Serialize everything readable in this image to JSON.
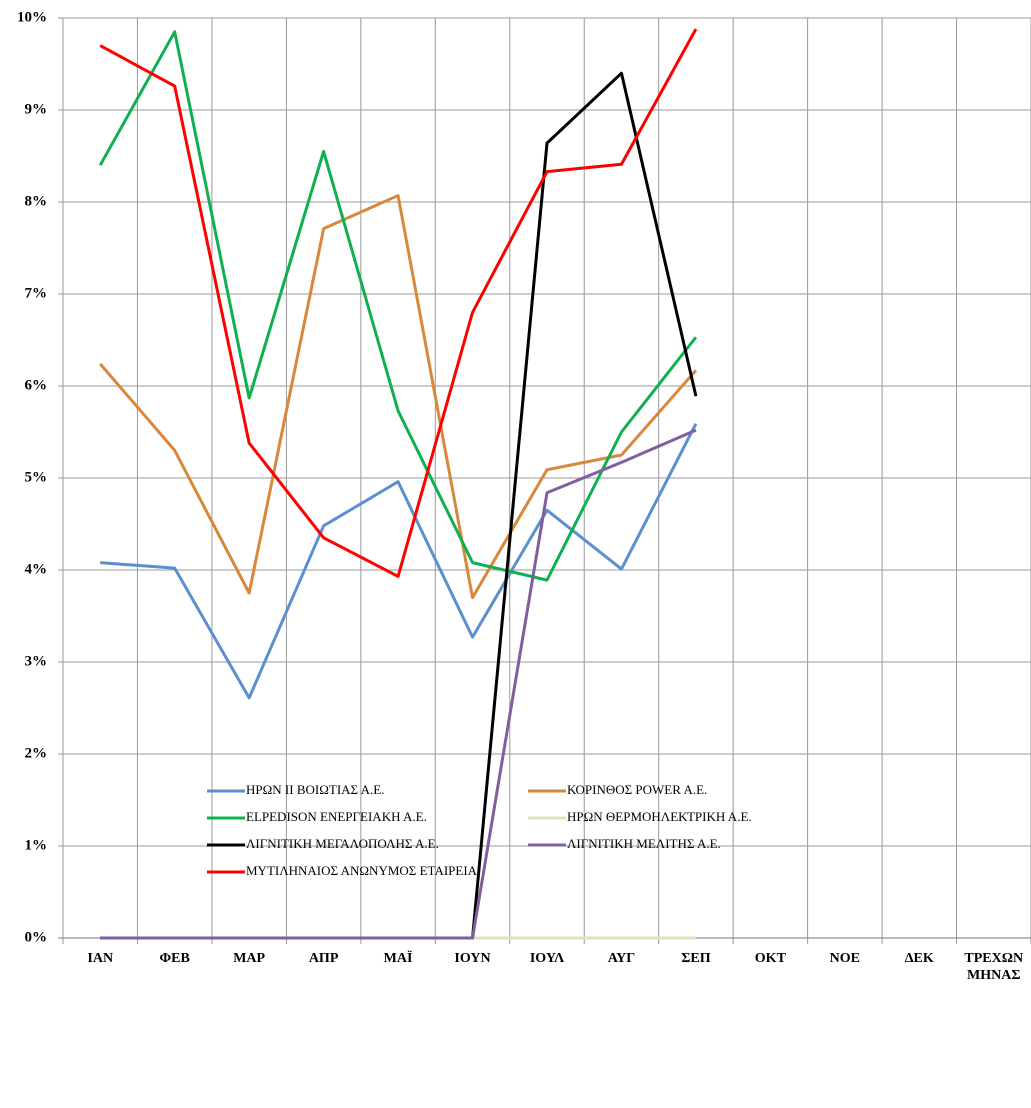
{
  "chart_data": {
    "type": "line",
    "categories": [
      "ΙΑΝ",
      "ΦΕΒ",
      "ΜΑΡ",
      "ΑΠΡ",
      "ΜΑΪ",
      "ΙΟΥΝ",
      "ΙΟΥΛ",
      "ΑΥΓ",
      "ΣΕΠ",
      "ΟΚΤ",
      "ΝΟΕ",
      "ΔΕΚ",
      "ΤΡΕΧΩΝ ΜΗΝΑΣ"
    ],
    "series": [
      {
        "name": "ΗΡΩΝ ΙΙ ΒΟΙΩΤΙΑΣ Α.Ε.",
        "color": "#5b8fd0",
        "values": [
          4.08,
          4.02,
          2.61,
          4.48,
          4.96,
          3.27,
          4.65,
          4.01,
          5.59,
          null,
          null,
          null,
          null
        ]
      },
      {
        "name": "ΚΟΡΙΝΘΟΣ POWER A.E.",
        "color": "#d9873a",
        "values": [
          6.24,
          5.3,
          3.75,
          7.71,
          8.07,
          3.7,
          5.09,
          5.25,
          6.17,
          null,
          null,
          null,
          null
        ]
      },
      {
        "name": "ELPEDISON ΕΝΕΡΓΕΙΑΚΗ Α.Ε.",
        "color": "#10b050",
        "values": [
          8.4,
          9.85,
          5.87,
          8.55,
          5.73,
          4.08,
          3.89,
          5.5,
          6.53,
          null,
          null,
          null,
          null
        ]
      },
      {
        "name": "ΗΡΩΝ ΘΕΡΜΟΗΛΕΚΤΡΙΚΗ Α.Ε.",
        "color": "#d7e4bd",
        "values": [
          0,
          0,
          0,
          0,
          0,
          0,
          0,
          0,
          0,
          null,
          null,
          null,
          null
        ]
      },
      {
        "name": "ΛΙΓΝΙΤΙΚΗ ΜΕΓΑΛΟΠΟΛΗΣ Α.Ε.",
        "color": "#000000",
        "values": [
          0,
          0,
          0,
          0,
          0,
          0,
          8.64,
          9.4,
          5.89,
          null,
          null,
          null,
          null
        ]
      },
      {
        "name": "ΛΙΓΝΙΤΙΚΗ ΜΕΛΙΤΗΣ Α.Ε.",
        "color": "#7f5f9f",
        "values": [
          0,
          0,
          0,
          0,
          0,
          0,
          4.84,
          5.17,
          5.52,
          null,
          null,
          null,
          null
        ]
      },
      {
        "name": "ΜΥΤΙΛΗΝΑΙΟΣ ΑΝΩΝΥΜΟΣ ΕΤΑΙΡΕΙΑ",
        "color": "#ff0000",
        "values": [
          9.7,
          9.26,
          5.38,
          4.35,
          3.93,
          6.8,
          8.33,
          8.41,
          9.88,
          null,
          null,
          null,
          null
        ]
      }
    ],
    "ylim": [
      0,
      10
    ],
    "yticks": [
      {
        "value": 0,
        "label": "0%"
      },
      {
        "value": 1,
        "label": "1%"
      },
      {
        "value": 2,
        "label": "2%"
      },
      {
        "value": 3,
        "label": "3%"
      },
      {
        "value": 4,
        "label": "4%"
      },
      {
        "value": 5,
        "label": "5%"
      },
      {
        "value": 6,
        "label": "6%"
      },
      {
        "value": 7,
        "label": "7%"
      },
      {
        "value": 8,
        "label": "8%"
      },
      {
        "value": 9,
        "label": "9%"
      },
      {
        "value": 10,
        "label": "10%"
      }
    ],
    "grid": true
  }
}
